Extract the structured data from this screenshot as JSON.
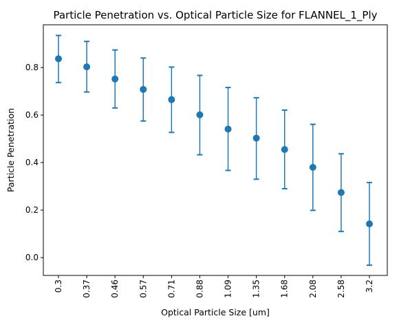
{
  "chart_data": {
    "type": "scatter",
    "title": "Particle Penetration vs. Optical Particle Size for FLANNEL_1_Ply",
    "xlabel": "Optical Particle Size [um]",
    "ylabel": "Particle Penetration",
    "categories": [
      "0.3",
      "0.37",
      "0.46",
      "0.57",
      "0.71",
      "0.88",
      "1.09",
      "1.35",
      "1.68",
      "2.08",
      "2.58",
      "3.2"
    ],
    "values": [
      0.837,
      0.803,
      0.752,
      0.708,
      0.665,
      0.601,
      0.541,
      0.503,
      0.455,
      0.38,
      0.274,
      0.142
    ],
    "error_low": [
      0.737,
      0.697,
      0.63,
      0.575,
      0.527,
      0.433,
      0.367,
      0.33,
      0.29,
      0.199,
      0.11,
      -0.032
    ],
    "error_high": [
      0.935,
      0.91,
      0.874,
      0.84,
      0.802,
      0.767,
      0.716,
      0.673,
      0.621,
      0.561,
      0.437,
      0.316
    ],
    "yticks": [
      "0.0",
      "0.2",
      "0.4",
      "0.6",
      "0.8"
    ],
    "ylim": [
      -0.075,
      0.98
    ],
    "grid": false,
    "color": "#1f77b4"
  }
}
